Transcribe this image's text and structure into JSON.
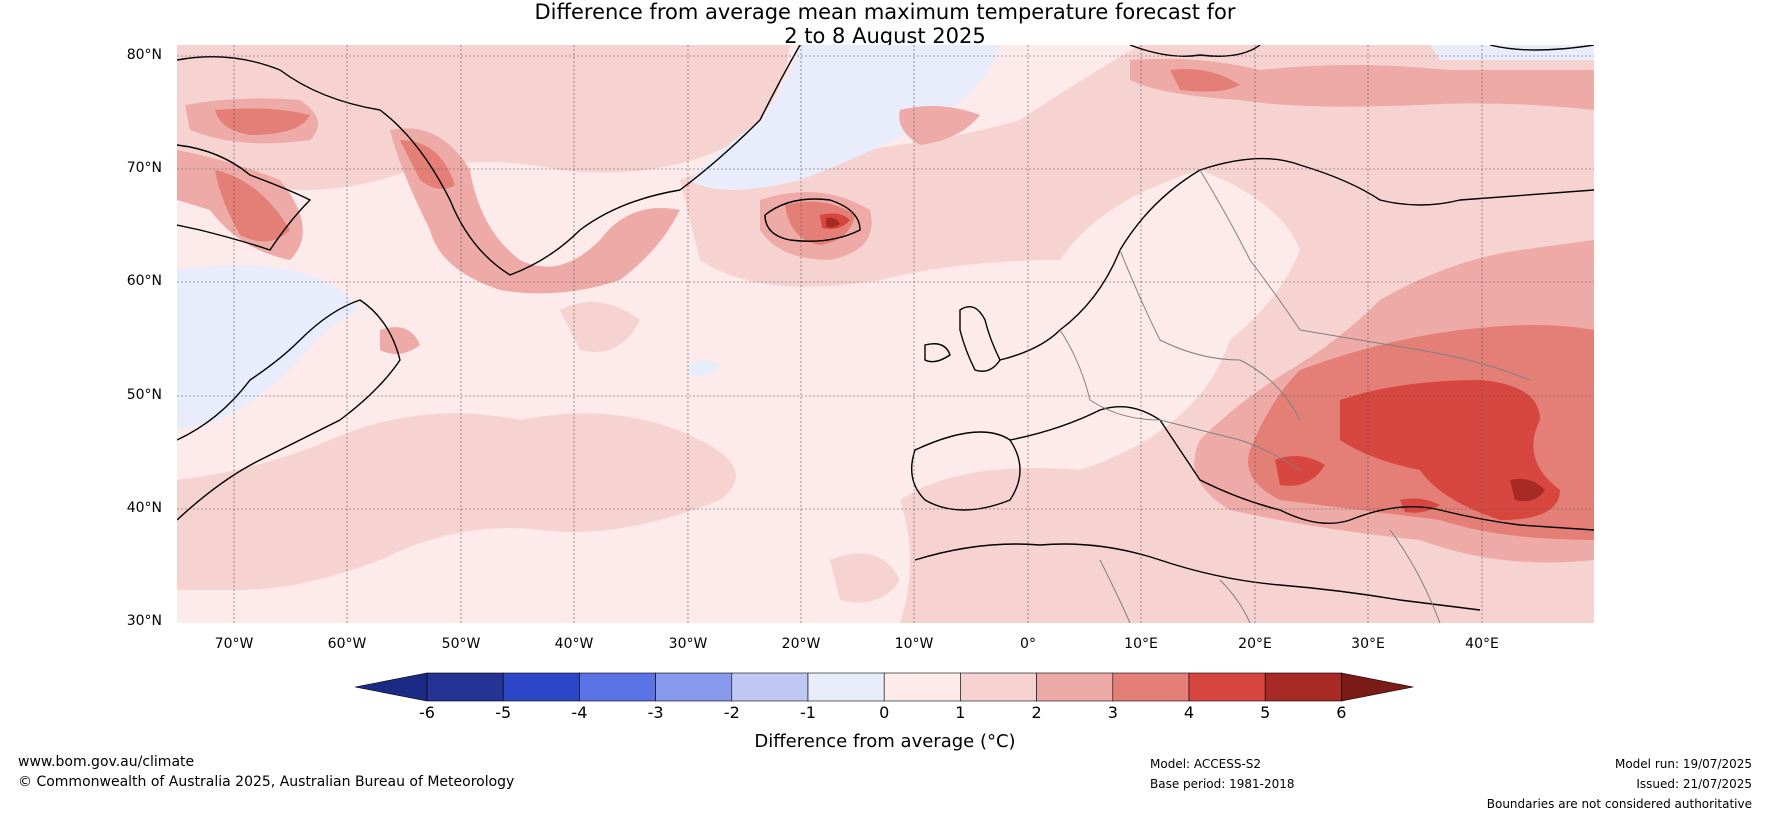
{
  "title": {
    "line1": "Difference from average mean maximum temperature forecast for",
    "line2": "2 to 8 August 2025"
  },
  "map": {
    "lat_labels": [
      "80°N",
      "70°N",
      "60°N",
      "50°N",
      "40°N",
      "30°N"
    ],
    "lon_labels": [
      "70°W",
      "60°W",
      "50°W",
      "40°W",
      "30°W",
      "20°W",
      "10°W",
      "0°",
      "10°E",
      "20°E",
      "30°E",
      "40°E"
    ]
  },
  "colorbar": {
    "label": "Difference from average (°C)",
    "ticks": [
      "-6",
      "-5",
      "-4",
      "-3",
      "-2",
      "-1",
      "0",
      "1",
      "2",
      "3",
      "4",
      "5",
      "6"
    ],
    "colors": [
      "#253494",
      "#2c46c8",
      "#5a73e6",
      "#8799ec",
      "#bfc8f3",
      "#e8ecfb",
      "#fcebea",
      "#f6d2d0",
      "#eeaaa6",
      "#e47f78",
      "#d8473f",
      "#a82a25"
    ],
    "under_color": "#1b2a84",
    "over_color": "#7a1b17"
  },
  "footer": {
    "url": "www.bom.gov.au/climate",
    "copyright": "© Commonwealth of Australia 2025, Australian Bureau of Meteorology",
    "model": "Model: ACCESS-S2",
    "base_period": "Base period: 1981-2018",
    "model_run": "Model run: 19/07/2025",
    "issued": "Issued: 21/07/2025",
    "disclaimer": "Boundaries are not considered authoritative"
  }
}
